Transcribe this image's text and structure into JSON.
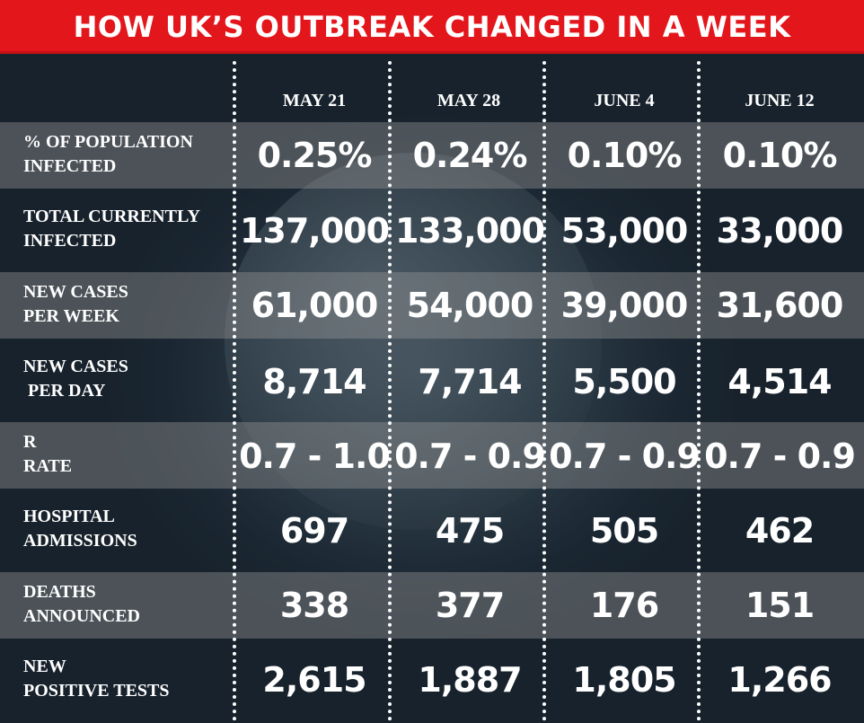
{
  "title": "HOW UK’S OUTBREAK CHANGED IN A WEEK",
  "chart_data": {
    "type": "table",
    "columns": [
      "MAY 21",
      "MAY 28",
      "JUNE 4",
      "JUNE 12"
    ],
    "rows": [
      {
        "label": "% OF POPULATION\nINFECTED",
        "values": [
          "0.25%",
          "0.24%",
          "0.10%",
          "0.10%"
        ]
      },
      {
        "label": "TOTAL CURRENTLY\nINFECTED",
        "values": [
          "137,000",
          "133,000",
          "53,000",
          "33,000"
        ]
      },
      {
        "label": "NEW CASES\nPER WEEK",
        "values": [
          "61,000",
          "54,000",
          "39,000",
          "31,600"
        ]
      },
      {
        "label": "NEW CASES\n PER DAY",
        "values": [
          "8,714",
          "7,714",
          "5,500",
          "4,514"
        ]
      },
      {
        "label": "R\nRATE",
        "values": [
          "0.7 - 1.0",
          "0.7 - 0.9",
          "0.7 - 0.9",
          "0.7 - 0.9"
        ]
      },
      {
        "label": "HOSPITAL\nADMISSIONS",
        "values": [
          "697",
          "475",
          "505",
          "462"
        ]
      },
      {
        "label": "DEATHS\nANNOUNCED",
        "values": [
          "338",
          "377",
          "176",
          "151"
        ]
      },
      {
        "label": "NEW\nPOSITIVE TESTS",
        "values": [
          "2,615",
          "1,887",
          "1,805",
          "1,266"
        ]
      }
    ]
  },
  "colors": {
    "title_bg": "#e3161c",
    "text": "#ffffff",
    "background": "#1c2a36"
  }
}
